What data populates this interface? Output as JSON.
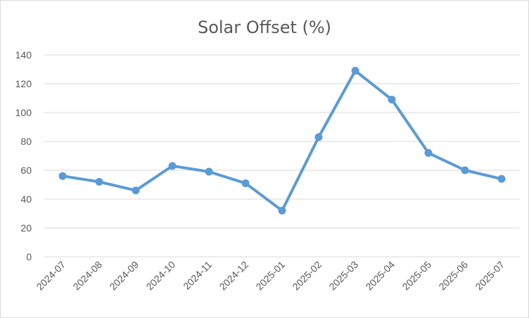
{
  "chart_data": {
    "type": "line",
    "title": "Solar Offset (%)",
    "xlabel": "",
    "ylabel": "",
    "categories": [
      "2024-07",
      "2024-08",
      "2024-09",
      "2024-10",
      "2024-11",
      "2024-12",
      "2025-01",
      "2025-02",
      "2025-03",
      "2025-04",
      "2025-05",
      "2025-06",
      "2025-07"
    ],
    "series": [
      {
        "values": [
          56,
          52,
          46,
          63,
          59,
          51,
          32,
          83,
          129,
          109,
          72,
          60,
          54
        ]
      }
    ],
    "ylim": [
      0,
      140
    ],
    "yticks": [
      "0",
      "20",
      "40",
      "60",
      "80",
      "100",
      "120",
      "140"
    ],
    "grid": true,
    "legend": "none",
    "colors": {
      "series": "#5b9bd5",
      "grid": "#d9d9d9",
      "text": "#595959"
    }
  }
}
